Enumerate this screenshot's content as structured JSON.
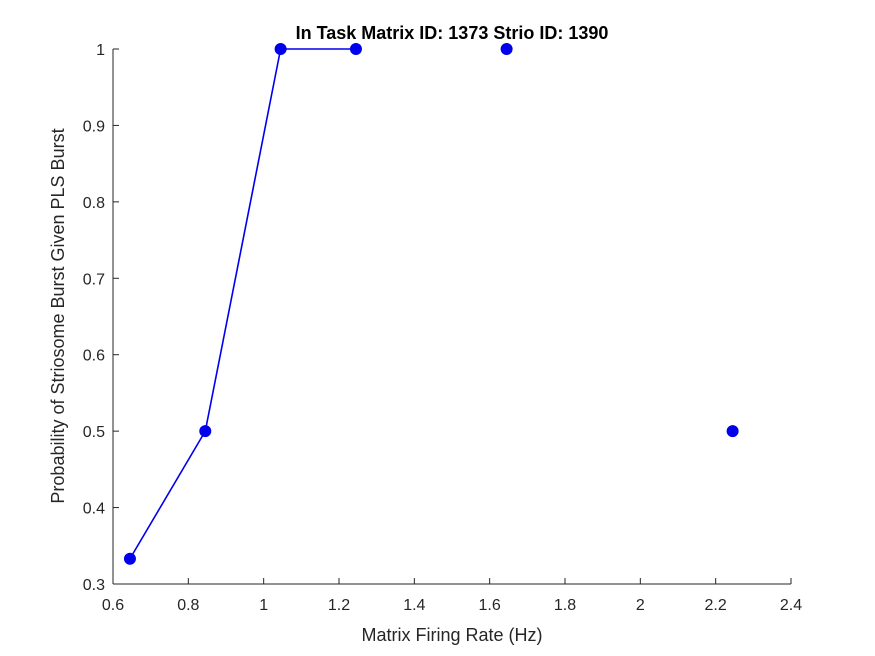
{
  "chart_data": {
    "type": "line",
    "title": "In Task Matrix ID: 1373 Strio ID: 1390",
    "xlabel": "Matrix Firing Rate (Hz)",
    "ylabel": "Probability of Striosome Burst Given PLS Burst",
    "xlim": [
      0.6,
      2.4
    ],
    "ylim": [
      0.3,
      1.0
    ],
    "xticks": [
      0.6,
      0.8,
      1.0,
      1.2,
      1.4,
      1.6,
      1.8,
      2.0,
      2.2,
      2.4
    ],
    "xtick_labels": [
      "0.6",
      "0.8",
      "1",
      "1.2",
      "1.4",
      "1.6",
      "1.8",
      "2",
      "2.2",
      "2.4"
    ],
    "yticks": [
      0.3,
      0.4,
      0.5,
      0.6,
      0.7,
      0.8,
      0.9,
      1.0
    ],
    "ytick_labels": [
      "0.3",
      "0.4",
      "0.5",
      "0.6",
      "0.7",
      "0.8",
      "0.9",
      "1"
    ],
    "grid": false,
    "series": [
      {
        "color": "#0000ee",
        "points": [
          {
            "x": 0.645,
            "y": 0.333,
            "connected_to_next": true
          },
          {
            "x": 0.845,
            "y": 0.5,
            "connected_to_next": true
          },
          {
            "x": 1.045,
            "y": 1.0,
            "connected_to_next": true
          },
          {
            "x": 1.245,
            "y": 1.0,
            "connected_to_next": false
          },
          {
            "x": 1.645,
            "y": 1.0,
            "connected_to_next": false
          },
          {
            "x": 2.245,
            "y": 0.5,
            "connected_to_next": false
          }
        ]
      }
    ]
  }
}
